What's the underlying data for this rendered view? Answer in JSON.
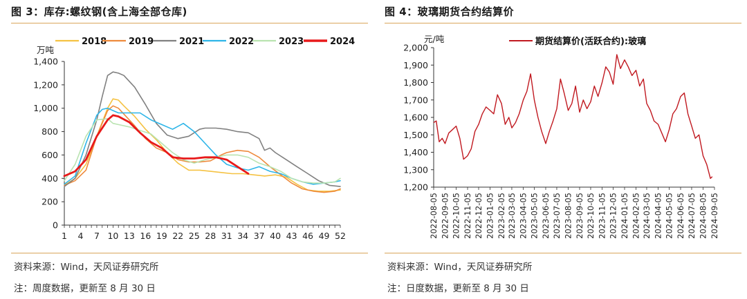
{
  "left": {
    "title": "图 3：库存:螺纹钢(含上海全部仓库)",
    "source": "资料来源：Wind，天风证券研究所",
    "note": "注：周度数据，更新至 8 月 30 日"
  },
  "right": {
    "title": "图 4：玻璃期货合约结算价",
    "source": "资料来源：Wind，天风证券研究所",
    "note": "注：日度数据，更新至 8 月 30 日"
  },
  "chart_data": [
    {
      "type": "line",
      "ylabel": "万吨",
      "ylim": [
        0,
        1400
      ],
      "yticks": [
        0,
        200,
        400,
        600,
        800,
        1000,
        1200,
        1400
      ],
      "ytick_labels": [
        "0",
        "200",
        "400",
        "600",
        "800",
        "1,000",
        "1,200",
        "1,400"
      ],
      "xlim": [
        1,
        52
      ],
      "xticks": [
        1,
        4,
        7,
        10,
        13,
        16,
        19,
        22,
        25,
        28,
        31,
        34,
        37,
        40,
        43,
        46,
        49,
        52
      ],
      "legend_position": "top",
      "grid": false,
      "series": [
        {
          "name": "2018",
          "color": "#f5c242",
          "width": 1.6,
          "x": [
            1,
            3,
            5,
            7,
            9,
            10,
            11,
            12,
            14,
            16,
            18,
            20,
            22,
            24,
            26,
            28,
            30,
            32,
            34,
            36,
            38,
            40,
            42,
            44,
            46,
            48,
            50,
            52
          ],
          "y": [
            340,
            400,
            520,
            760,
            1000,
            1080,
            1070,
            1020,
            930,
            820,
            730,
            620,
            530,
            470,
            470,
            460,
            450,
            440,
            440,
            430,
            420,
            430,
            410,
            350,
            300,
            290,
            290,
            300
          ]
        },
        {
          "name": "2019",
          "color": "#ee8a3c",
          "width": 1.6,
          "x": [
            1,
            3,
            5,
            7,
            9,
            10,
            11,
            12,
            14,
            16,
            18,
            20,
            22,
            24,
            26,
            28,
            30,
            31,
            33,
            35,
            37,
            39,
            41,
            43,
            45,
            47,
            49,
            51,
            52
          ],
          "y": [
            340,
            380,
            470,
            760,
            980,
            1020,
            1000,
            950,
            850,
            740,
            660,
            620,
            560,
            540,
            540,
            550,
            600,
            620,
            640,
            630,
            580,
            500,
            430,
            360,
            310,
            290,
            280,
            290,
            310
          ]
        },
        {
          "name": "2021",
          "color": "#808080",
          "width": 1.6,
          "x": [
            1,
            3,
            5,
            7,
            8,
            9,
            10,
            11,
            12,
            14,
            16,
            18,
            20,
            22,
            24,
            26,
            27,
            29,
            31,
            33,
            35,
            37,
            38,
            39,
            40,
            42,
            44,
            46,
            48,
            50,
            52
          ],
          "y": [
            330,
            400,
            600,
            900,
            1100,
            1280,
            1310,
            1300,
            1280,
            1180,
            1030,
            870,
            770,
            740,
            760,
            820,
            830,
            830,
            820,
            800,
            790,
            740,
            640,
            660,
            620,
            560,
            500,
            440,
            380,
            340,
            330
          ]
        },
        {
          "name": "2022",
          "color": "#2db5e8",
          "width": 1.6,
          "x": [
            1,
            3,
            5,
            7,
            8,
            9,
            10,
            11,
            13,
            15,
            17,
            19,
            21,
            23,
            25,
            27,
            29,
            31,
            33,
            35,
            37,
            39,
            41,
            43,
            45,
            47,
            49,
            51,
            52
          ],
          "y": [
            350,
            420,
            700,
            940,
            990,
            1000,
            980,
            960,
            960,
            960,
            900,
            860,
            820,
            870,
            800,
            700,
            600,
            520,
            490,
            470,
            500,
            460,
            440,
            400,
            370,
            350,
            360,
            370,
            380
          ]
        },
        {
          "name": "2023",
          "color": "#b9e3b0",
          "width": 1.6,
          "x": [
            1,
            3,
            5,
            7,
            9,
            10,
            11,
            13,
            15,
            17,
            19,
            21,
            23,
            25,
            27,
            29,
            31,
            33,
            35,
            37,
            39,
            41,
            43,
            45,
            47,
            49,
            51,
            52
          ],
          "y": [
            380,
            520,
            760,
            900,
            910,
            870,
            860,
            840,
            810,
            780,
            700,
            620,
            560,
            530,
            560,
            580,
            600,
            600,
            580,
            530,
            500,
            460,
            400,
            370,
            360,
            360,
            370,
            400
          ]
        },
        {
          "name": "2024",
          "color": "#e8191a",
          "width": 2.8,
          "x": [
            1,
            3,
            5,
            7,
            9,
            10,
            11,
            13,
            15,
            17,
            19,
            21,
            23,
            25,
            27,
            29,
            31,
            33,
            35
          ],
          "y": [
            420,
            460,
            560,
            760,
            900,
            940,
            930,
            880,
            790,
            710,
            660,
            580,
            570,
            570,
            580,
            580,
            560,
            500,
            440
          ]
        }
      ]
    },
    {
      "type": "line",
      "ylabel": "元/吨",
      "ylim": [
        1200,
        2000
      ],
      "yticks": [
        1200,
        1300,
        1400,
        1500,
        1600,
        1700,
        1800,
        1900,
        2000
      ],
      "ytick_labels": [
        "1,200",
        "1,300",
        "1,400",
        "1,500",
        "1,600",
        "1,700",
        "1,800",
        "1,900",
        "2,000"
      ],
      "categories": [
        "2022-08-05",
        "2022-09-05",
        "2022-10-05",
        "2022-11-05",
        "2022-12-05",
        "2023-01-05",
        "2023-02-05",
        "2023-03-05",
        "2023-04-05",
        "2023-05-05",
        "2023-06-05",
        "2023-07-05",
        "2023-08-05",
        "2023-09-05",
        "2023-10-05",
        "2023-11-05",
        "2023-12-05",
        "2024-01-05",
        "2024-02-05",
        "2024-03-05",
        "2024-04-05",
        "2024-05-05",
        "2024-06-05",
        "2024-07-05",
        "2024-08-05",
        "2024-09-05"
      ],
      "legend_position": "top",
      "grid": false,
      "series": [
        {
          "name": "期货结算价(活跃合约):玻璃",
          "color": "#c0181f",
          "width": 1.4,
          "x": [
            "2022-08-05",
            "2022-08-12",
            "2022-08-20",
            "2022-08-28",
            "2022-09-05",
            "2022-09-15",
            "2022-09-25",
            "2022-10-05",
            "2022-10-15",
            "2022-10-25",
            "2022-11-05",
            "2022-11-15",
            "2022-11-25",
            "2022-12-05",
            "2022-12-15",
            "2022-12-25",
            "2023-01-05",
            "2023-01-15",
            "2023-01-25",
            "2023-02-05",
            "2023-02-15",
            "2023-02-25",
            "2023-03-05",
            "2023-03-15",
            "2023-03-25",
            "2023-04-05",
            "2023-04-15",
            "2023-04-25",
            "2023-05-05",
            "2023-05-15",
            "2023-05-25",
            "2023-06-05",
            "2023-06-15",
            "2023-06-25",
            "2023-07-05",
            "2023-07-15",
            "2023-07-25",
            "2023-08-05",
            "2023-08-15",
            "2023-08-25",
            "2023-09-05",
            "2023-09-15",
            "2023-09-25",
            "2023-10-05",
            "2023-10-15",
            "2023-10-25",
            "2023-11-05",
            "2023-11-15",
            "2023-11-25",
            "2023-12-05",
            "2023-12-15",
            "2023-12-25",
            "2024-01-05",
            "2024-01-15",
            "2024-01-25",
            "2024-02-05",
            "2024-02-15",
            "2024-02-25",
            "2024-03-05",
            "2024-03-15",
            "2024-03-25",
            "2024-04-05",
            "2024-04-15",
            "2024-04-25",
            "2024-05-05",
            "2024-05-15",
            "2024-05-25",
            "2024-06-05",
            "2024-06-15",
            "2024-06-25",
            "2024-07-05",
            "2024-07-15",
            "2024-07-25",
            "2024-08-05",
            "2024-08-15",
            "2024-08-25",
            "2024-08-30"
          ],
          "y": [
            1570,
            1580,
            1460,
            1480,
            1450,
            1510,
            1530,
            1550,
            1480,
            1360,
            1380,
            1420,
            1520,
            1560,
            1620,
            1660,
            1640,
            1620,
            1730,
            1680,
            1560,
            1600,
            1540,
            1570,
            1620,
            1700,
            1750,
            1850,
            1700,
            1600,
            1520,
            1450,
            1520,
            1580,
            1650,
            1820,
            1740,
            1640,
            1680,
            1780,
            1630,
            1700,
            1650,
            1690,
            1780,
            1720,
            1800,
            1890,
            1860,
            1790,
            1960,
            1880,
            1930,
            1890,
            1840,
            1870,
            1780,
            1820,
            1680,
            1640,
            1580,
            1560,
            1510,
            1460,
            1530,
            1620,
            1650,
            1720,
            1740,
            1620,
            1550,
            1480,
            1500,
            1380,
            1330,
            1250,
            1260
          ]
        }
      ]
    }
  ]
}
